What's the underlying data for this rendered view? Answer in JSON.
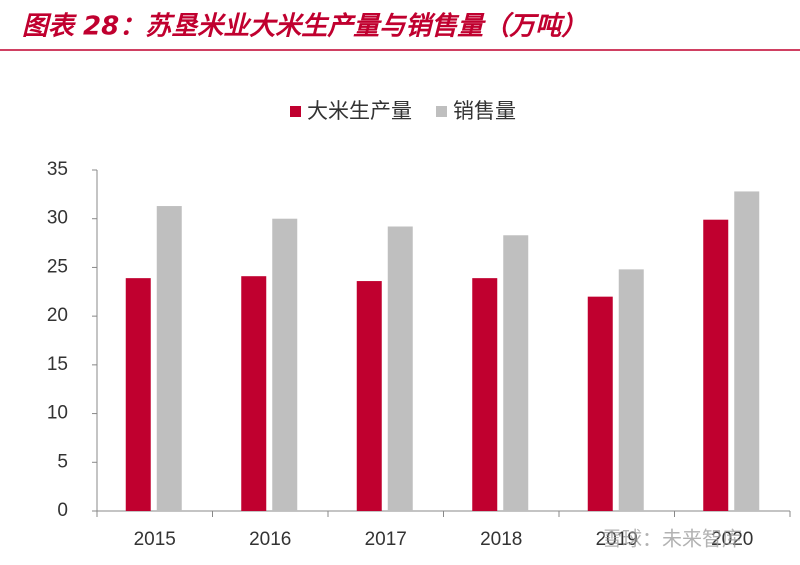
{
  "chart_data": {
    "type": "bar",
    "title": "图表 28：苏垦米业大米生产量与销售量（万吨）",
    "categories": [
      "2015",
      "2016",
      "2017",
      "2018",
      "2019",
      "2020"
    ],
    "series": [
      {
        "name": "大米生产量",
        "color": "#c0002f",
        "values": [
          23.9,
          24.1,
          23.6,
          23.9,
          22.0,
          29.9
        ]
      },
      {
        "name": "销售量",
        "color": "#bfbfbf",
        "values": [
          31.3,
          30.0,
          29.2,
          28.3,
          24.8,
          32.8
        ]
      }
    ],
    "ylim": [
      0,
      35
    ],
    "yticks": [
      0,
      5,
      10,
      15,
      20,
      25,
      30,
      35
    ],
    "watermark": "雪球：未来智库"
  }
}
